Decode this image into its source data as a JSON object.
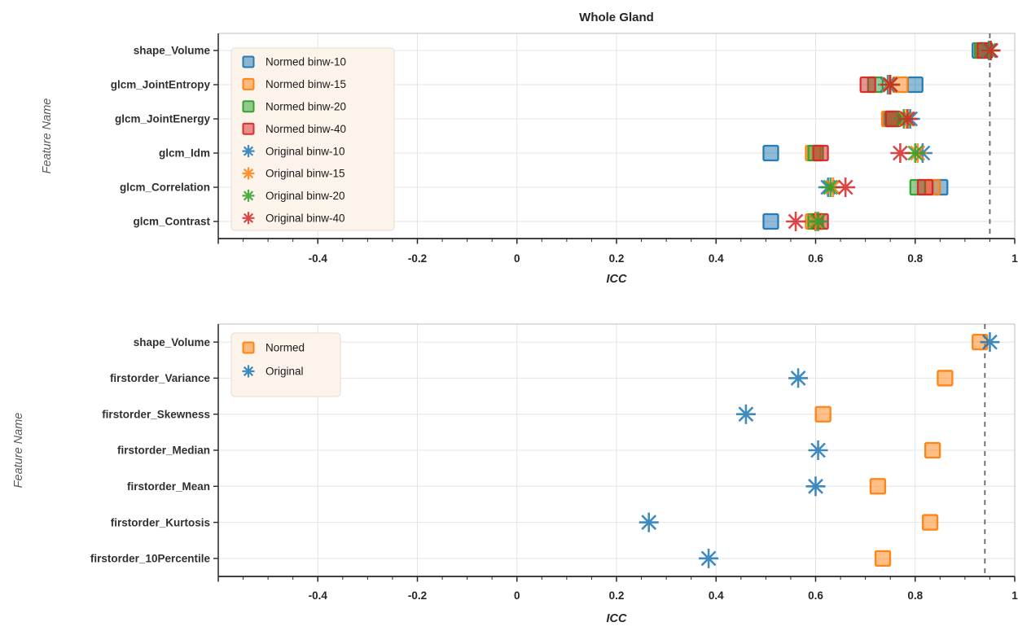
{
  "figure_title": "Whole Gland",
  "style": {
    "blue": "#1f77b4",
    "orange": "#ff7f0e",
    "green": "#2ca02c",
    "red": "#d62728",
    "grid_color": "#e4e4e4",
    "spine_dark": "#262626",
    "spine_light": "#c9c9c9",
    "dashed_line_color": "#666666",
    "legend_bg": "#fcf3eb",
    "legend_border": "#e6dbd2"
  },
  "chart_data": [
    {
      "type": "scatter",
      "title": "Whole Gland",
      "xlabel": "ICC",
      "ylabel": "Feature Name",
      "xlim": [
        -0.6,
        1.0
      ],
      "xtick_values": [
        -0.4,
        -0.2,
        0,
        0.2,
        0.4,
        0.6,
        0.8,
        1
      ],
      "xtick_labels": [
        "-0.4",
        "-0.2",
        "0",
        "0.2",
        "0.4",
        "0.6",
        "0.8",
        "1"
      ],
      "minor_tick_step": 0.05,
      "grid": true,
      "legend_position": "upper left",
      "threshold_line_x": 0.95,
      "features": [
        "shape_Volume",
        "glcm_JointEntropy",
        "glcm_JointEnergy",
        "glcm_Idm",
        "glcm_Correlation",
        "glcm_Contrast"
      ],
      "series": [
        {
          "name": "Normed binw-10",
          "marker": "square",
          "color": "#1f77b4",
          "values": [
            0.93,
            0.8,
            0.752,
            0.51,
            0.85,
            0.51
          ]
        },
        {
          "name": "Normed binw-15",
          "marker": "square",
          "color": "#ff7f0e",
          "values": [
            0.935,
            0.77,
            0.748,
            0.595,
            0.835,
            0.595
          ]
        },
        {
          "name": "Normed binw-20",
          "marker": "square",
          "color": "#2ca02c",
          "values": [
            0.935,
            0.72,
            0.755,
            0.6,
            0.805,
            0.6
          ]
        },
        {
          "name": "Normed binw-40",
          "marker": "square",
          "color": "#d62728",
          "values": [
            0.94,
            0.705,
            0.756,
            0.61,
            0.82,
            0.61
          ]
        },
        {
          "name": "Original binw-10",
          "marker": "star",
          "color": "#1f77b4",
          "values": [
            0.948,
            0.745,
            0.79,
            0.815,
            0.625,
            0.6
          ]
        },
        {
          "name": "Original binw-15",
          "marker": "star",
          "color": "#ff7f0e",
          "values": [
            0.95,
            0.748,
            0.782,
            0.805,
            0.635,
            0.6
          ]
        },
        {
          "name": "Original binw-20",
          "marker": "star",
          "color": "#2ca02c",
          "values": [
            0.95,
            0.75,
            0.777,
            0.8,
            0.63,
            0.605
          ]
        },
        {
          "name": "Original binw-40",
          "marker": "star",
          "color": "#d62728",
          "values": [
            0.952,
            0.75,
            0.785,
            0.77,
            0.66,
            0.56
          ]
        }
      ]
    },
    {
      "type": "scatter",
      "title": "",
      "xlabel": "ICC",
      "ylabel": "Feature Name",
      "xlim": [
        -0.6,
        1.0
      ],
      "xtick_values": [
        -0.4,
        -0.2,
        0,
        0.2,
        0.4,
        0.6,
        0.8,
        1
      ],
      "xtick_labels": [
        "-0.4",
        "-0.2",
        "0",
        "0.2",
        "0.4",
        "0.6",
        "0.8",
        "1"
      ],
      "minor_tick_step": 0.05,
      "grid": true,
      "legend_position": "upper left",
      "threshold_line_x": 0.94,
      "features": [
        "shape_Volume",
        "firstorder_Variance",
        "firstorder_Skewness",
        "firstorder_Median",
        "firstorder_Mean",
        "firstorder_Kurtosis",
        "firstorder_10Percentile"
      ],
      "series": [
        {
          "name": "Normed",
          "marker": "square",
          "color": "#ff7f0e",
          "values": [
            0.93,
            0.86,
            0.615,
            0.835,
            0.725,
            0.83,
            0.735
          ]
        },
        {
          "name": "Original",
          "marker": "star",
          "color": "#1f77b4",
          "values": [
            0.95,
            0.565,
            0.46,
            0.605,
            0.6,
            0.265,
            0.385
          ]
        }
      ]
    }
  ]
}
